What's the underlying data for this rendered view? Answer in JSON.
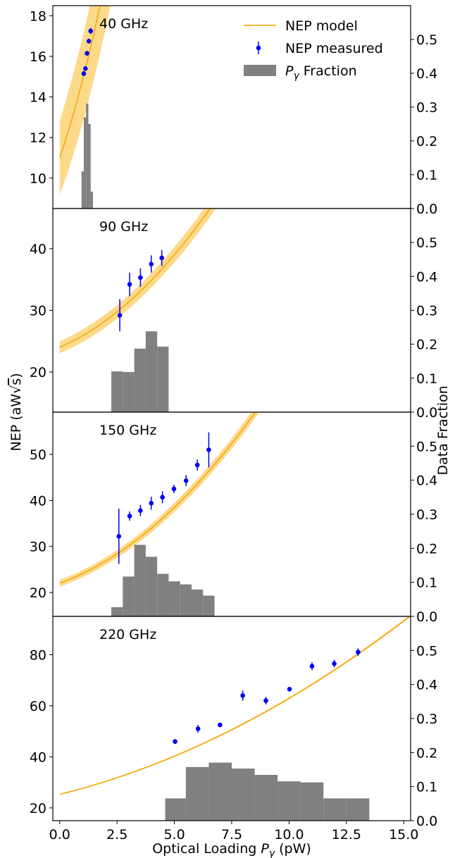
{
  "chart_data": {
    "type": "line",
    "shared": {
      "xlabel": "Optical Loading",
      "xlabel_symbol": "P",
      "xlabel_subscript": "γ",
      "xlabel_unit": "(pW)",
      "ylabel_left": "NEP (aW√s)",
      "ylabel_left_prefix": "NEP (aW",
      "ylabel_left_radical": "s",
      "ylabel_left_suffix": ")",
      "ylabel_right": "Data Fraction",
      "xlim": [
        -0.3,
        15.3
      ],
      "xticks": [
        0.0,
        2.5,
        5.0,
        7.5,
        10.0,
        12.5,
        15.0
      ],
      "xtick_labels": [
        "0.0",
        "2.5",
        "5.0",
        "7.5",
        "10.0",
        "12.5",
        "15.0"
      ],
      "right_ylim": [
        0,
        0.6
      ],
      "right_yticks": [
        0.0,
        0.1,
        0.2,
        0.3,
        0.4,
        0.5
      ],
      "right_ytick_labels": [
        "0.0",
        "0.1",
        "0.2",
        "0.3",
        "0.4",
        "0.5"
      ],
      "legend_placement": "top-right of first panel",
      "legend": [
        {
          "label": "NEP model",
          "kind": "line"
        },
        {
          "label": "NEP measured",
          "kind": "errorbar"
        },
        {
          "label": "Fraction",
          "kind": "patch",
          "prefix_symbol": "P",
          "prefix_subscript": "γ"
        }
      ],
      "colors": {
        "model_line": "#f5a300",
        "model_band": "#fdd98a",
        "measured": "#0000f0",
        "histogram": "#808080",
        "axes": "#000000"
      }
    },
    "panels": [
      {
        "label": "40 GHz",
        "ylim": [
          8.5,
          18.5
        ],
        "yticks": [
          10,
          12,
          14,
          16,
          18
        ],
        "model": {
          "a": 11.0,
          "b": 3.3,
          "c": 0.55,
          "band": 0.55
        },
        "measured": {
          "x": [
            1.05,
            1.12,
            1.19,
            1.27,
            1.35
          ],
          "y": [
            15.15,
            15.4,
            16.15,
            16.75,
            17.25
          ],
          "err": [
            0.1,
            0.12,
            0.12,
            0.12,
            0.15
          ]
        },
        "histogram": {
          "edges": [
            0.95,
            1.05,
            1.15,
            1.25,
            1.35,
            1.45
          ],
          "fractions": [
            0.11,
            0.27,
            0.31,
            0.25,
            0.05
          ]
        }
      },
      {
        "label": "90 GHz",
        "ylim": [
          13.5,
          46.5
        ],
        "yticks": [
          20,
          30,
          40
        ],
        "model": {
          "a": 24.0,
          "b": 1.6,
          "c": 0.28,
          "band": 0.2
        },
        "measured": {
          "x": [
            2.62,
            3.05,
            3.52,
            3.99,
            4.45
          ],
          "y": [
            29.2,
            34.2,
            35.3,
            37.5,
            38.5
          ],
          "err": [
            2.6,
            1.9,
            1.5,
            1.4,
            1.3
          ]
        },
        "histogram": {
          "edges": [
            2.25,
            2.75,
            3.25,
            3.75,
            4.25,
            4.75
          ],
          "fractions": [
            0.12,
            0.118,
            0.187,
            0.238,
            0.193
          ]
        }
      },
      {
        "label": "150 GHz",
        "ylim": [
          14.8,
          59.2
        ],
        "yticks": [
          20,
          30,
          40,
          50
        ],
        "model": {
          "a": 22.0,
          "b": 1.8,
          "c": 0.3,
          "band": 0.16
        },
        "measured": {
          "x": [
            2.58,
            3.05,
            3.52,
            3.99,
            4.48,
            4.98,
            5.51,
            6.0,
            6.5
          ],
          "y": [
            32.2,
            36.6,
            37.8,
            39.4,
            40.7,
            42.5,
            44.3,
            47.7,
            51.0
          ],
          "err": [
            6.0,
            1.0,
            1.2,
            1.4,
            1.3,
            0.9,
            1.2,
            1.2,
            3.8
          ]
        },
        "histogram": {
          "edges": [
            2.25,
            2.75,
            3.25,
            3.75,
            4.25,
            4.75,
            5.25,
            5.75,
            6.25,
            6.75
          ],
          "fractions": [
            0.027,
            0.117,
            0.21,
            0.175,
            0.125,
            0.103,
            0.094,
            0.079,
            0.061
          ]
        }
      },
      {
        "label": "220 GHz",
        "ylim": [
          15,
          95
        ],
        "yticks": [
          20,
          40,
          60,
          80
        ],
        "model": {
          "a": 25.3,
          "b": 2.22,
          "c": 0.154,
          "band": 0.05
        },
        "measured": {
          "x": [
            5.03,
            6.03,
            6.99,
            7.98,
            8.99,
            10.02,
            11.0,
            11.97,
            13.01
          ],
          "y": [
            46.0,
            51.0,
            52.5,
            64.0,
            62.0,
            66.5,
            75.5,
            76.5,
            81.0
          ],
          "err": [
            1.0,
            1.5,
            0.5,
            2.0,
            1.5,
            0.5,
            1.5,
            1.5,
            1.5
          ]
        },
        "histogram": {
          "edges": [
            4.6,
            5.5,
            6.5,
            7.5,
            8.5,
            9.5,
            10.5,
            11.5,
            12.5,
            13.5
          ],
          "fractions": [
            0.0655,
            0.1575,
            0.1705,
            0.153,
            0.1345,
            0.1155,
            0.1125,
            0.0655,
            0.0655
          ]
        }
      }
    ]
  }
}
